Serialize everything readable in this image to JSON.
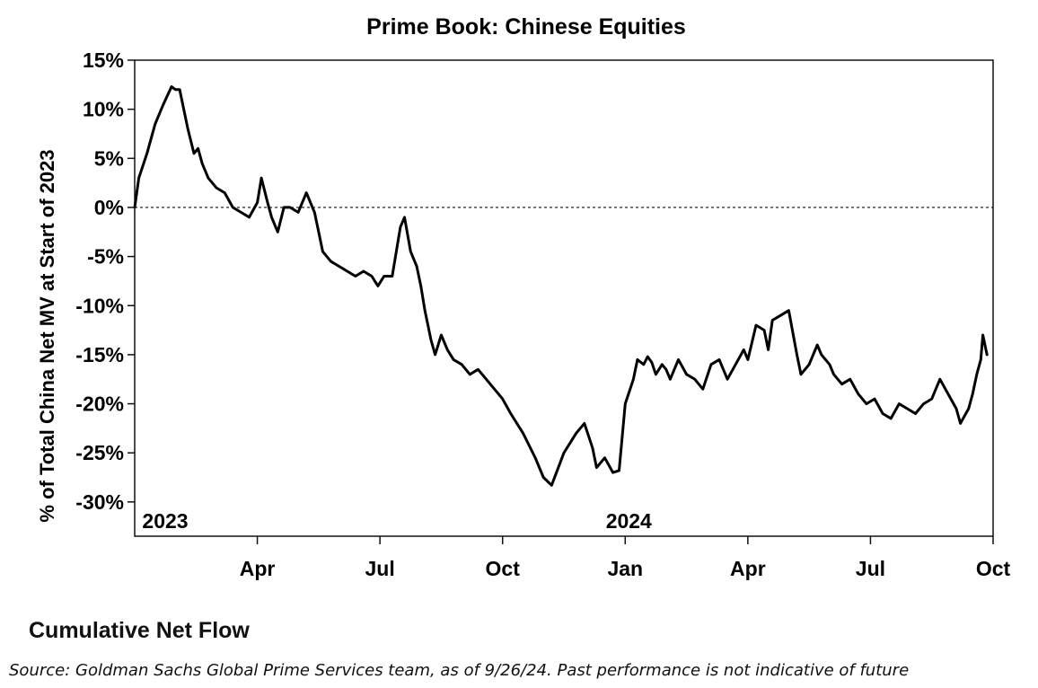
{
  "chart_data": {
    "type": "line",
    "title": "Prime Book: Chinese Equities",
    "ylabel": "% of Total China Net MV at Start of 2023",
    "xlabel": "",
    "ylim": [
      -33,
      15
    ],
    "yticks": [
      15,
      10,
      5,
      0,
      -5,
      -10,
      -15,
      -20,
      -25,
      -30
    ],
    "ytick_labels": [
      "15%",
      "10%",
      "5%",
      "0%",
      "-5%",
      "-10%",
      "-15%",
      "-20%",
      "-25%",
      "-30%"
    ],
    "x_range_months": [
      0,
      21
    ],
    "xticks": [
      3,
      6,
      9,
      12,
      15,
      18,
      21
    ],
    "xtick_labels": [
      "Apr",
      "Jul",
      "Oct",
      "Jan",
      "Apr",
      "Jul",
      "Oct"
    ],
    "year_labels": [
      {
        "text": "2023",
        "month": 0
      },
      {
        "text": "2024",
        "month": 12
      }
    ],
    "reference_line": {
      "y": 0,
      "style": "dotted"
    },
    "series": [
      {
        "name": "Cumulative Net Flow",
        "x_months": [
          0,
          0.1,
          0.3,
          0.5,
          0.7,
          0.9,
          1.0,
          1.1,
          1.3,
          1.45,
          1.55,
          1.65,
          1.8,
          2.0,
          2.2,
          2.4,
          2.6,
          2.8,
          3.0,
          3.1,
          3.25,
          3.35,
          3.5,
          3.65,
          3.8,
          4.0,
          4.2,
          4.4,
          4.5,
          4.6,
          4.8,
          5.0,
          5.2,
          5.4,
          5.6,
          5.8,
          5.95,
          6.1,
          6.3,
          6.5,
          6.6,
          6.75,
          6.9,
          7.0,
          7.1,
          7.25,
          7.35,
          7.5,
          7.65,
          7.8,
          8.0,
          8.2,
          8.4,
          8.6,
          8.8,
          9.0,
          9.2,
          9.5,
          9.8,
          10.0,
          10.2,
          10.5,
          10.8,
          11.0,
          11.2,
          11.3,
          11.5,
          11.7,
          11.85,
          12.0,
          12.2,
          12.3,
          12.45,
          12.55,
          12.65,
          12.75,
          12.9,
          13.0,
          13.1,
          13.3,
          13.5,
          13.7,
          13.9,
          14.1,
          14.3,
          14.5,
          14.7,
          14.9,
          15.0,
          15.2,
          15.4,
          15.5,
          15.6,
          15.8,
          16.0,
          16.2,
          16.3,
          16.5,
          16.7,
          16.8,
          17.0,
          17.1,
          17.3,
          17.5,
          17.7,
          17.9,
          18.1,
          18.3,
          18.5,
          18.7,
          18.9,
          19.1,
          19.3,
          19.5,
          19.7,
          19.9,
          20.1,
          20.2,
          20.4,
          20.5,
          20.6,
          20.7,
          20.75,
          20.85
        ],
        "values": [
          0,
          3,
          5.5,
          8.5,
          10.5,
          12.3,
          12.0,
          12.0,
          8.0,
          5.5,
          6.0,
          4.5,
          3.0,
          2.0,
          1.5,
          0,
          -0.5,
          -1.0,
          0.5,
          3.0,
          0.5,
          -1.0,
          -2.5,
          0.0,
          0.0,
          -0.5,
          1.5,
          -0.5,
          -2.5,
          -4.5,
          -5.5,
          -6.0,
          -6.5,
          -7.0,
          -6.5,
          -7.0,
          -8.0,
          -7.0,
          -7.0,
          -2.0,
          -1.0,
          -4.5,
          -6.0,
          -8.0,
          -10.5,
          -13.5,
          -15.0,
          -13.0,
          -14.5,
          -15.5,
          -16.0,
          -17.0,
          -16.5,
          -17.5,
          -18.5,
          -19.5,
          -21.0,
          -23.0,
          -25.5,
          -27.5,
          -28.3,
          -25.0,
          -23.0,
          -22.0,
          -24.5,
          -26.5,
          -25.5,
          -27.0,
          -26.8,
          -20.0,
          -17.5,
          -15.5,
          -16.0,
          -15.2,
          -15.8,
          -17.0,
          -16.0,
          -16.5,
          -17.5,
          -15.5,
          -17.0,
          -17.5,
          -18.5,
          -16.0,
          -15.5,
          -17.5,
          -16.0,
          -14.5,
          -15.5,
          -12.0,
          -12.5,
          -14.5,
          -11.5,
          -11.0,
          -10.5,
          -15.0,
          -17.0,
          -16.0,
          -14.0,
          -15.0,
          -16.0,
          -17.0,
          -18.0,
          -17.5,
          -19.0,
          -20.0,
          -19.5,
          -21.0,
          -21.5,
          -20.0,
          -20.5,
          -21.0,
          -20.0,
          -19.5,
          -17.5,
          -19.0,
          -20.5,
          -22.0,
          -20.5,
          -19.0,
          -17.0,
          -15.5,
          -13.0,
          -15.0
        ]
      }
    ]
  },
  "subtitle": "Cumulative Net Flow",
  "source": "Source: Goldman Sachs Global Prime Services team,  as of 9/26/24. Past performance is not indicative of future"
}
